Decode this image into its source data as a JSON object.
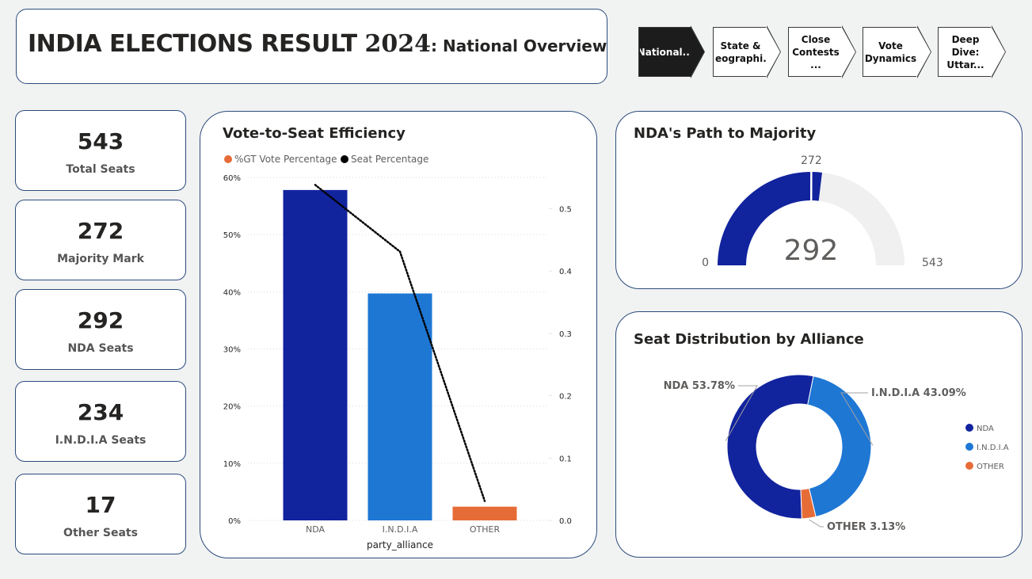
{
  "header": {
    "title_main": "INDIA ELECTIONS RESULT ",
    "title_year": "2024",
    "title_sub": ": National Overview"
  },
  "nav": {
    "pages": [
      {
        "label": "National...",
        "active": true
      },
      {
        "label": "State &\nGeographi...",
        "active": false
      },
      {
        "label": "Close\nContests ...",
        "active": false
      },
      {
        "label": "Vote\nDynamics",
        "active": false
      },
      {
        "label": "Deep Dive:\nUttar...",
        "active": false
      }
    ]
  },
  "kpis": [
    {
      "value": "543",
      "label": "Total Seats"
    },
    {
      "value": "272",
      "label": "Majority Mark"
    },
    {
      "value": "292",
      "label": "NDA Seats"
    },
    {
      "value": "234",
      "label": "I.N.D.I.A Seats"
    },
    {
      "value": "17",
      "label": "Other Seats"
    }
  ],
  "colors": {
    "nda": "#12239e",
    "india": "#1f77d4",
    "other": "#e66c37",
    "gauge_bg": "#f0f0f0",
    "line": "#000000"
  },
  "chart_data": [
    {
      "type": "bar",
      "title": "Vote-to-Seat Efficiency",
      "categories": [
        "NDA",
        "I.N.D.I.A",
        "OTHER"
      ],
      "series": [
        {
          "name": "%GT Vote Percentage",
          "type": "bar",
          "axis": "left",
          "values": [
            57.8,
            39.7,
            2.4
          ]
        },
        {
          "name": "Seat Percentage",
          "type": "line",
          "axis": "right",
          "values": [
            0.538,
            0.431,
            0.031
          ]
        }
      ],
      "xlabel": "party_alliance",
      "ylabel": "",
      "ylim": [
        0,
        60
      ],
      "yticks": [
        "0%",
        "10%",
        "20%",
        "30%",
        "40%",
        "50%",
        "60%"
      ],
      "y2lim": [
        0,
        0.55
      ],
      "y2ticks": [
        "0.0",
        "0.1",
        "0.2",
        "0.3",
        "0.4",
        "0.5"
      ],
      "legend": "top-left",
      "grid": true
    },
    {
      "type": "gauge",
      "title": "NDA's Path to Majority",
      "value": 292,
      "value_label": "292",
      "min": 0,
      "max": 543,
      "target": 272,
      "min_label": "0",
      "max_label": "543",
      "target_label": "272"
    },
    {
      "type": "pie",
      "title": "Seat Distribution by Alliance",
      "labels": [
        "NDA",
        "I.N.D.I.A",
        "OTHER"
      ],
      "values": [
        53.78,
        43.09,
        3.13
      ],
      "data_labels": [
        "NDA 53.78%",
        "I.N.D.I.A 43.09%",
        "OTHER 3.13%"
      ],
      "donut": true,
      "legend": "right"
    }
  ]
}
